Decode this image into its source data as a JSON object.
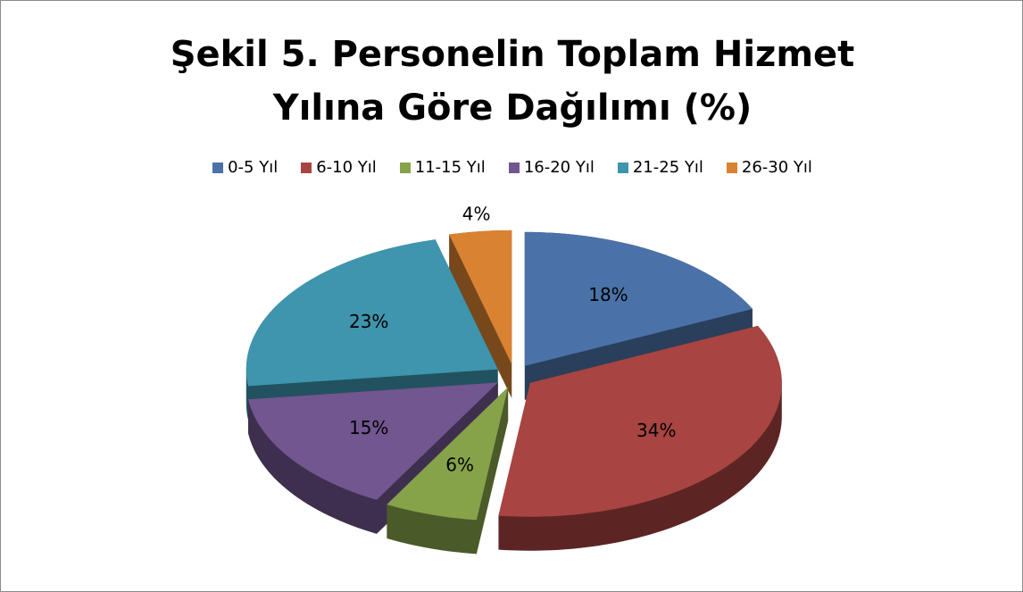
{
  "chart_data": {
    "type": "pie",
    "title": "Şekil 5. Personelin Toplam Hizmet Yılına Göre Dağılımı (%)",
    "categories": [
      "0-5 Yıl",
      "6-10 Yıl",
      "11-15 Yıl",
      "16-20 Yıl",
      "21-25 Yıl",
      "26-30 Yıl"
    ],
    "values": [
      18,
      34,
      6,
      15,
      23,
      4
    ],
    "value_labels": [
      "18%",
      "34%",
      "6%",
      "15%",
      "23%",
      "4%"
    ],
    "colors": [
      "#4a72a8",
      "#a84442",
      "#86a34a",
      "#71568f",
      "#3e95ad",
      "#d98232"
    ],
    "legend": "top"
  }
}
